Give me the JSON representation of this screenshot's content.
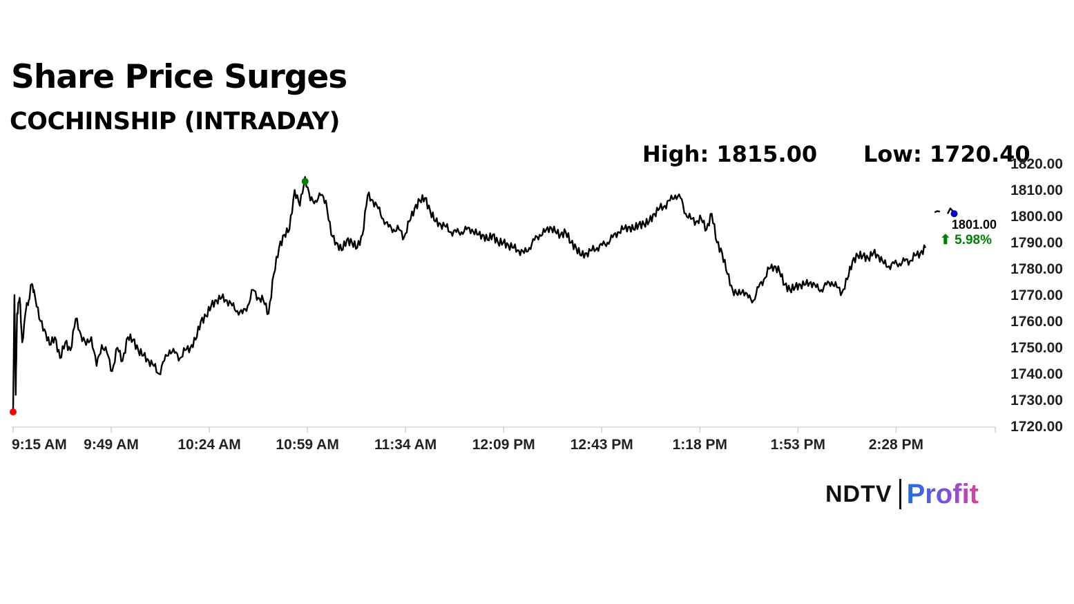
{
  "header": {
    "title": "Share Price Surges",
    "subtitle": "COCHINSHIP (INTRADAY)",
    "high_label": "High:",
    "high_value": "1815.00",
    "low_label": "Low:",
    "low_value": "1720.40"
  },
  "chart_data": {
    "type": "line",
    "title": "Share Price Surges",
    "subtitle": "COCHINSHIP (INTRADAY)",
    "xlabel": "",
    "ylabel": "",
    "x_ticks": [
      "9:15 AM",
      "9:49 AM",
      "10:24 AM",
      "10:59 AM",
      "11:34 AM",
      "12:09 PM",
      "12:43 PM",
      "1:18 PM",
      "1:53 PM",
      "2:28 PM"
    ],
    "y_ticks": [
      "1720.00",
      "1730.00",
      "1740.00",
      "1750.00",
      "1760.00",
      "1770.00",
      "1780.00",
      "1790.00",
      "1800.00",
      "1810.00",
      "1820.00"
    ],
    "ylim": [
      1720,
      1820
    ],
    "time_range_minutes": [
      0,
      350
    ],
    "grid": false,
    "series": [
      {
        "color": "#000000",
        "points": [
          [
            0,
            1726
          ],
          [
            0.5,
            1770
          ],
          [
            1,
            1732
          ],
          [
            1.5,
            1763
          ],
          [
            2.5,
            1769
          ],
          [
            3.5,
            1752
          ],
          [
            5,
            1765
          ],
          [
            6,
            1768
          ],
          [
            7,
            1774
          ],
          [
            8,
            1772
          ],
          [
            10,
            1761
          ],
          [
            12,
            1757
          ],
          [
            14,
            1751
          ],
          [
            16,
            1754
          ],
          [
            18,
            1746
          ],
          [
            20,
            1752
          ],
          [
            22,
            1749
          ],
          [
            24,
            1761
          ],
          [
            26,
            1755
          ],
          [
            28,
            1751
          ],
          [
            30,
            1754
          ],
          [
            32,
            1743
          ],
          [
            34,
            1751
          ],
          [
            36,
            1748
          ],
          [
            38,
            1741
          ],
          [
            40,
            1750
          ],
          [
            42,
            1745
          ],
          [
            44,
            1754
          ],
          [
            46,
            1753
          ],
          [
            48,
            1749
          ],
          [
            50,
            1747
          ],
          [
            52,
            1745
          ],
          [
            54,
            1743
          ],
          [
            56,
            1740
          ],
          [
            58,
            1745
          ],
          [
            60,
            1749
          ],
          [
            62,
            1748
          ],
          [
            64,
            1746
          ],
          [
            66,
            1749
          ],
          [
            68,
            1750
          ],
          [
            70,
            1753
          ],
          [
            72,
            1760
          ],
          [
            74,
            1762
          ],
          [
            76,
            1766
          ],
          [
            78,
            1768
          ],
          [
            80,
            1769
          ],
          [
            82,
            1768
          ],
          [
            84,
            1766
          ],
          [
            86,
            1764
          ],
          [
            88,
            1763
          ],
          [
            90,
            1766
          ],
          [
            92,
            1772
          ],
          [
            94,
            1769
          ],
          [
            96,
            1768
          ],
          [
            98,
            1763
          ],
          [
            100,
            1778
          ],
          [
            102,
            1788
          ],
          [
            104,
            1793
          ],
          [
            106,
            1795
          ],
          [
            108,
            1810
          ],
          [
            110,
            1804
          ],
          [
            112,
            1815
          ],
          [
            114,
            1806
          ],
          [
            116,
            1806
          ],
          [
            118,
            1808
          ],
          [
            120,
            1806
          ],
          [
            122,
            1793
          ],
          [
            124,
            1790
          ],
          [
            126,
            1787
          ],
          [
            128,
            1791
          ],
          [
            130,
            1790
          ],
          [
            132,
            1788
          ],
          [
            134,
            1793
          ],
          [
            136,
            1808
          ],
          [
            138,
            1806
          ],
          [
            140,
            1803
          ],
          [
            142,
            1799
          ],
          [
            144,
            1796
          ],
          [
            146,
            1795
          ],
          [
            148,
            1795
          ],
          [
            150,
            1792
          ],
          [
            152,
            1798
          ],
          [
            154,
            1803
          ],
          [
            156,
            1806
          ],
          [
            158,
            1807
          ],
          [
            160,
            1802
          ],
          [
            162,
            1798
          ],
          [
            164,
            1797
          ],
          [
            166,
            1796
          ],
          [
            168,
            1794
          ],
          [
            170,
            1794
          ],
          [
            172,
            1794
          ],
          [
            174,
            1795
          ],
          [
            176,
            1795
          ],
          [
            178,
            1793
          ],
          [
            180,
            1793
          ],
          [
            182,
            1791
          ],
          [
            184,
            1793
          ],
          [
            186,
            1790
          ],
          [
            188,
            1790
          ],
          [
            190,
            1789
          ],
          [
            192,
            1788
          ],
          [
            194,
            1787
          ],
          [
            196,
            1786
          ],
          [
            198,
            1788
          ],
          [
            200,
            1791
          ],
          [
            202,
            1793
          ],
          [
            204,
            1794
          ],
          [
            206,
            1796
          ],
          [
            208,
            1794
          ],
          [
            210,
            1793
          ],
          [
            212,
            1794
          ],
          [
            214,
            1790
          ],
          [
            216,
            1788
          ],
          [
            218,
            1785
          ],
          [
            220,
            1786
          ],
          [
            222,
            1787
          ],
          [
            224,
            1788
          ],
          [
            226,
            1789
          ],
          [
            228,
            1790
          ],
          [
            230,
            1792
          ],
          [
            232,
            1794
          ],
          [
            234,
            1795
          ],
          [
            236,
            1796
          ],
          [
            238,
            1795
          ],
          [
            240,
            1797
          ],
          [
            242,
            1797
          ],
          [
            244,
            1798
          ],
          [
            246,
            1801
          ],
          [
            248,
            1803
          ],
          [
            250,
            1804
          ],
          [
            252,
            1806
          ],
          [
            254,
            1808
          ],
          [
            256,
            1807
          ],
          [
            258,
            1801
          ],
          [
            260,
            1799
          ],
          [
            262,
            1798
          ],
          [
            264,
            1799
          ],
          [
            266,
            1795
          ],
          [
            268,
            1801
          ],
          [
            270,
            1790
          ],
          [
            272,
            1786
          ],
          [
            274,
            1778
          ],
          [
            276,
            1772
          ],
          [
            278,
            1770
          ],
          [
            280,
            1772
          ],
          [
            282,
            1769
          ],
          [
            284,
            1768
          ],
          [
            286,
            1773
          ],
          [
            288,
            1776
          ],
          [
            290,
            1780
          ],
          [
            292,
            1781
          ],
          [
            294,
            1779
          ],
          [
            296,
            1774
          ],
          [
            298,
            1772
          ],
          [
            300,
            1773
          ],
          [
            302,
            1774
          ],
          [
            304,
            1774
          ],
          [
            306,
            1775
          ],
          [
            308,
            1773
          ],
          [
            310,
            1772
          ],
          [
            312,
            1774
          ],
          [
            314,
            1775
          ],
          [
            316,
            1773
          ],
          [
            318,
            1771
          ],
          [
            320,
            1776
          ],
          [
            322,
            1783
          ],
          [
            324,
            1785
          ],
          [
            326,
            1785
          ],
          [
            328,
            1784
          ],
          [
            330,
            1786
          ],
          [
            332,
            1785
          ],
          [
            334,
            1782
          ],
          [
            336,
            1781
          ],
          [
            338,
            1782
          ],
          [
            340,
            1782
          ],
          [
            342,
            1783
          ],
          [
            344,
            1783
          ],
          [
            346,
            1785
          ],
          [
            348,
            1786
          ],
          [
            350,
            1788
          ]
        ]
      },
      {
        "color": "#000000",
        "points": [
          [
            353.5,
            1801.5
          ],
          [
            354.5,
            1802
          ],
          [
            355.5,
            1801.8
          ]
        ]
      },
      {
        "color": "#000000",
        "points": [
          [
            358.5,
            1801
          ],
          [
            359.5,
            1803
          ],
          [
            360.5,
            1802
          ],
          [
            361.5,
            1801.5
          ]
        ]
      }
    ],
    "markers": [
      {
        "label": "low",
        "color": "#ff0000",
        "t": 0,
        "value": 1725.5
      },
      {
        "label": "high",
        "color": "#008000",
        "t": 112,
        "value": 1813.3
      },
      {
        "label": "last",
        "color": "#0000cc",
        "t": 361,
        "value": 1801.0
      }
    ],
    "last_price": {
      "value": "1801.00",
      "change": "5.98%",
      "direction": "up",
      "change_color": "#008000"
    }
  },
  "logo": {
    "ndtv": "NDTV",
    "profit": "Profit"
  }
}
